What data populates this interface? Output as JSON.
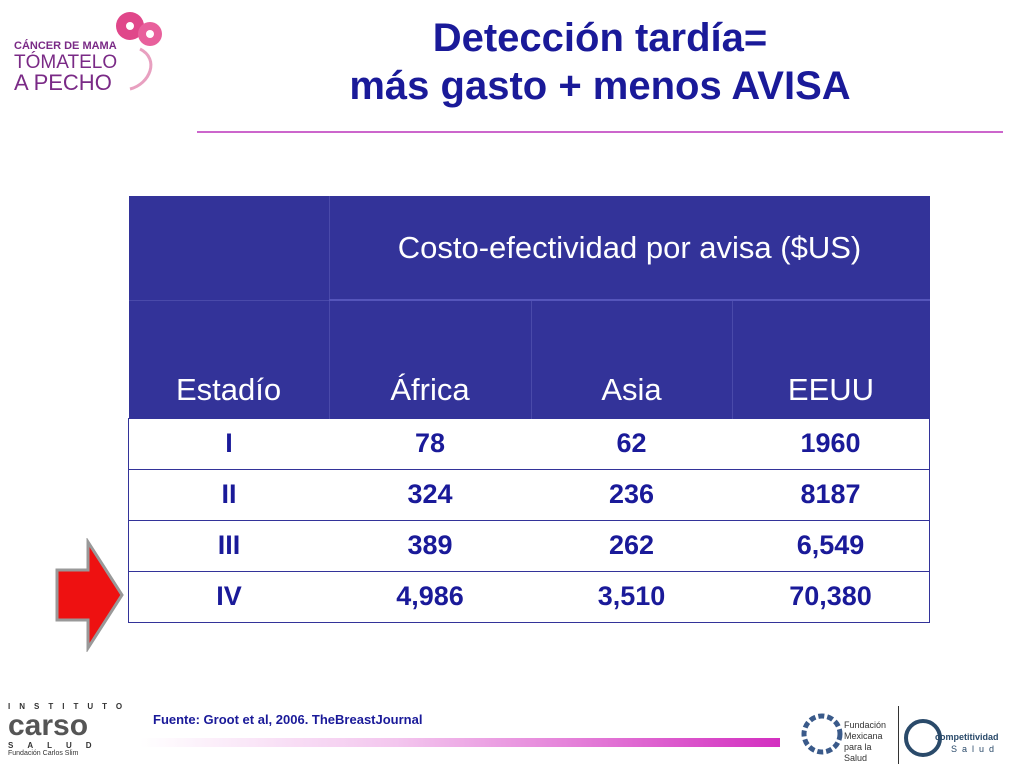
{
  "logo": {
    "line1": "CÁNCER DE MAMA",
    "line2": "TÓMATELO",
    "line3": "A PECHO"
  },
  "header": {
    "title_line1": "Detección tardía=",
    "title_line2": "más gasto + menos AVISA"
  },
  "table": {
    "group_header": "Costo-efectividad por avisa ($US)",
    "columns": [
      "Estadío",
      "África",
      "Asia",
      "EEUU"
    ],
    "rows": [
      [
        "I",
        78,
        62,
        1960
      ],
      [
        "II",
        324,
        236,
        8187
      ],
      [
        "III",
        389,
        262,
        "6,549"
      ],
      [
        "IV",
        "4,986",
        "3,510",
        "70,380"
      ]
    ]
  },
  "source": "Fuente: Groot et al,  2006. TheBreastJournal",
  "footer": {
    "carso_top": "INSTITUTO",
    "carso_name": "carso",
    "carso_bottom": "SALUD",
    "carso_sub": "Fundación Carlos Slim",
    "funsalud": "Fundación Mexicana para la Salud",
    "comp1": "competitividad",
    "comp2": "Salud"
  }
}
